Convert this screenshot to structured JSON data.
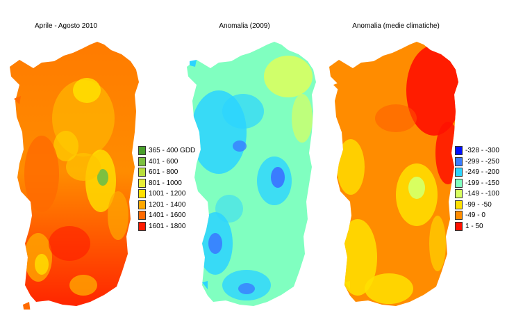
{
  "maps": [
    {
      "title": "Aprile - Agosto 2010",
      "legend": [
        {
          "label": "365 - 400 GDD",
          "color": "#4aa02c"
        },
        {
          "label": "401 - 600",
          "color": "#7cc040"
        },
        {
          "label": "601 - 800",
          "color": "#b8de3c"
        },
        {
          "label": "801 - 1000",
          "color": "#e8ee38"
        },
        {
          "label": "1001 - 1200",
          "color": "#ffe000"
        },
        {
          "label": "1201 - 1400",
          "color": "#ffa800"
        },
        {
          "label": "1401 - 1600",
          "color": "#ff6a00"
        },
        {
          "label": "1601 - 1800",
          "color": "#ff1a00"
        }
      ]
    },
    {
      "title": "Anomalia (2009)",
      "legend": []
    },
    {
      "title": "Anomalia (medie climatiche)",
      "legend": [
        {
          "label": "-328 - -300",
          "color": "#0010ff"
        },
        {
          "label": "-299 - -250",
          "color": "#3a7cff"
        },
        {
          "label": "-249 - -200",
          "color": "#2cd4ff"
        },
        {
          "label": "-199 - -150",
          "color": "#80ffc0"
        },
        {
          "label": "-149 - -100",
          "color": "#d8ff60"
        },
        {
          "label": "-99 - -50",
          "color": "#ffe000"
        },
        {
          "label": "-49 - 0",
          "color": "#ff8c00"
        },
        {
          "label": "1 - 50",
          "color": "#ff1000"
        }
      ]
    }
  ]
}
